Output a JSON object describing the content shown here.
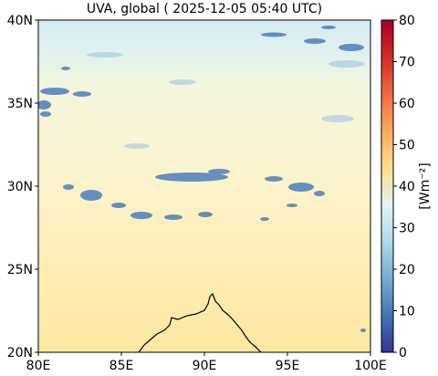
{
  "title": "UVA, global ( 2025-12-05 05:40 UTC)",
  "map": {
    "lon_range": [
      80,
      100
    ],
    "lat_range": [
      20,
      40
    ],
    "lon_ticks": [
      {
        "value": 80,
        "label": "80E"
      },
      {
        "value": 85,
        "label": "85E"
      },
      {
        "value": 90,
        "label": "90E"
      },
      {
        "value": 95,
        "label": "95E"
      },
      {
        "value": 100,
        "label": "100E"
      }
    ],
    "lat_ticks": [
      {
        "value": 20,
        "label": "20N"
      },
      {
        "value": 25,
        "label": "25N"
      },
      {
        "value": 30,
        "label": "30N"
      },
      {
        "value": 35,
        "label": "35N"
      },
      {
        "value": 40,
        "label": "40N"
      }
    ]
  },
  "colorbar": {
    "label": "[Wm⁻²]",
    "range": [
      0,
      80
    ],
    "ticks": [
      {
        "value": 0,
        "label": "0"
      },
      {
        "value": 10,
        "label": "10"
      },
      {
        "value": 20,
        "label": "20"
      },
      {
        "value": 30,
        "label": "30"
      },
      {
        "value": 40,
        "label": "40"
      },
      {
        "value": 50,
        "label": "50"
      },
      {
        "value": 60,
        "label": "60"
      },
      {
        "value": 70,
        "label": "70"
      },
      {
        "value": 80,
        "label": "80"
      }
    ],
    "colors": [
      "#313695",
      "#4575b4",
      "#74add1",
      "#abd9e9",
      "#e0f3f8",
      "#fee090",
      "#fdae61",
      "#f46d43",
      "#d73027",
      "#a50026"
    ]
  }
}
